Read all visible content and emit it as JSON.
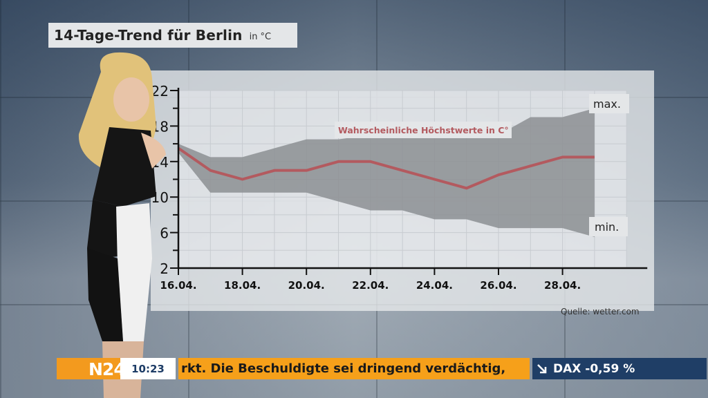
{
  "header": {
    "title": "14-Tage-Trend für Berlin",
    "unit": "in °C"
  },
  "source": "Quelle: wetter.com",
  "ticker": {
    "logo": "N24",
    "time": "10:23",
    "headline": "rkt. Die Beschuldigte sei dringend verdächtig,",
    "market": "DAX -0,59 %"
  },
  "colors": {
    "band": "#8c8f93",
    "line": "#b35a5f",
    "ticker_orange": "#f6a01a",
    "ticker_blue": "#1f3e66"
  },
  "chart_data": {
    "type": "area",
    "title": "14-Tage-Trend für Berlin",
    "ylabel": "in °C",
    "ylim": [
      2,
      22
    ],
    "yticks": [
      "2",
      "6",
      "10",
      "14",
      "18",
      "22"
    ],
    "x": [
      "16.04.",
      "17.04.",
      "18.04.",
      "19.04.",
      "20.04.",
      "21.04.",
      "22.04.",
      "23.04.",
      "24.04.",
      "25.04.",
      "26.04.",
      "27.04.",
      "28.04.",
      "29.04."
    ],
    "xtick_labels": [
      "16.04.",
      "18.04.",
      "20.04.",
      "22.04.",
      "24.04.",
      "26.04.",
      "28.04."
    ],
    "series": [
      {
        "name": "Wahrscheinliche Höchstwerte in C°",
        "values": [
          15.5,
          13,
          12,
          13,
          13,
          14,
          14,
          13,
          12,
          11,
          12.5,
          13.5,
          14.5,
          14.5
        ]
      },
      {
        "name": "max.",
        "values": [
          16,
          14.5,
          14.5,
          15.5,
          16.5,
          16.5,
          17,
          17,
          17,
          17,
          17,
          19,
          19,
          20
        ]
      },
      {
        "name": "min.",
        "values": [
          15,
          10.5,
          10.5,
          10.5,
          10.5,
          9.5,
          8.5,
          8.5,
          7.5,
          7.5,
          6.5,
          6.5,
          6.5,
          5.5
        ]
      }
    ],
    "grid": true
  }
}
